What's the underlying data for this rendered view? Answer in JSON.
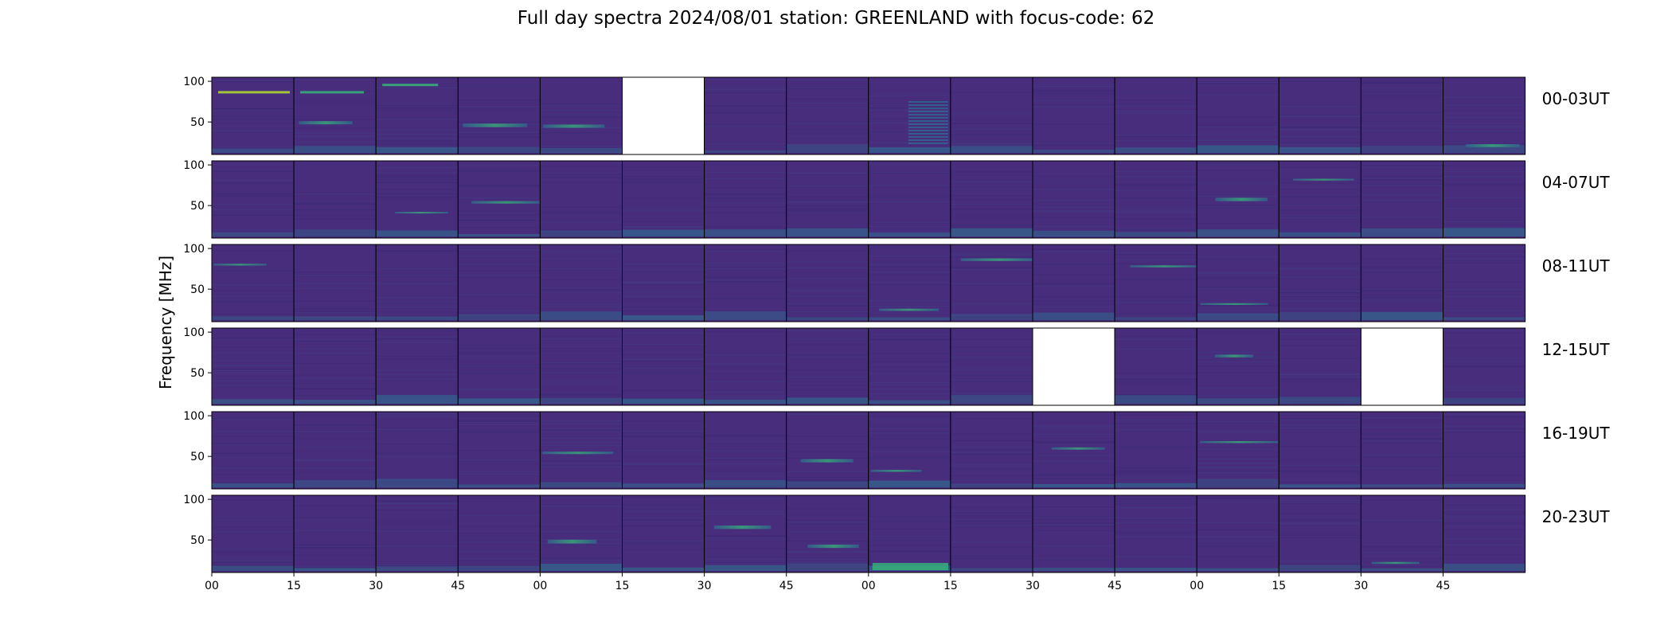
{
  "chart_data": {
    "type": "heatmap",
    "title": "Full day spectra 2024/08/01 station: GREENLAND with focus-code: 62",
    "ylabel": "Frequency [MHz]",
    "xlabel": "",
    "colormap": "viridis",
    "ylim": [
      10,
      105
    ],
    "yticks": [
      "50",
      "100"
    ],
    "xticks": [
      "00",
      "15",
      "30",
      "45",
      "00",
      "15",
      "30",
      "45",
      "00",
      "15",
      "30",
      "45",
      "00",
      "15",
      "30",
      "45"
    ],
    "panels_per_row": 16,
    "rows": [
      {
        "label": "00-03UT",
        "missing": [
          5
        ]
      },
      {
        "label": "04-07UT",
        "missing": []
      },
      {
        "label": "08-11UT",
        "missing": []
      },
      {
        "label": "12-15UT",
        "missing": [
          10,
          14
        ]
      },
      {
        "label": "16-19UT",
        "missing": []
      },
      {
        "label": "20-23UT",
        "missing": []
      }
    ],
    "colors": {
      "background": "#472d7b",
      "low": "#3e2b78",
      "mid": "#31688e",
      "high": "#35b779",
      "peak": "#b5de2b"
    }
  }
}
